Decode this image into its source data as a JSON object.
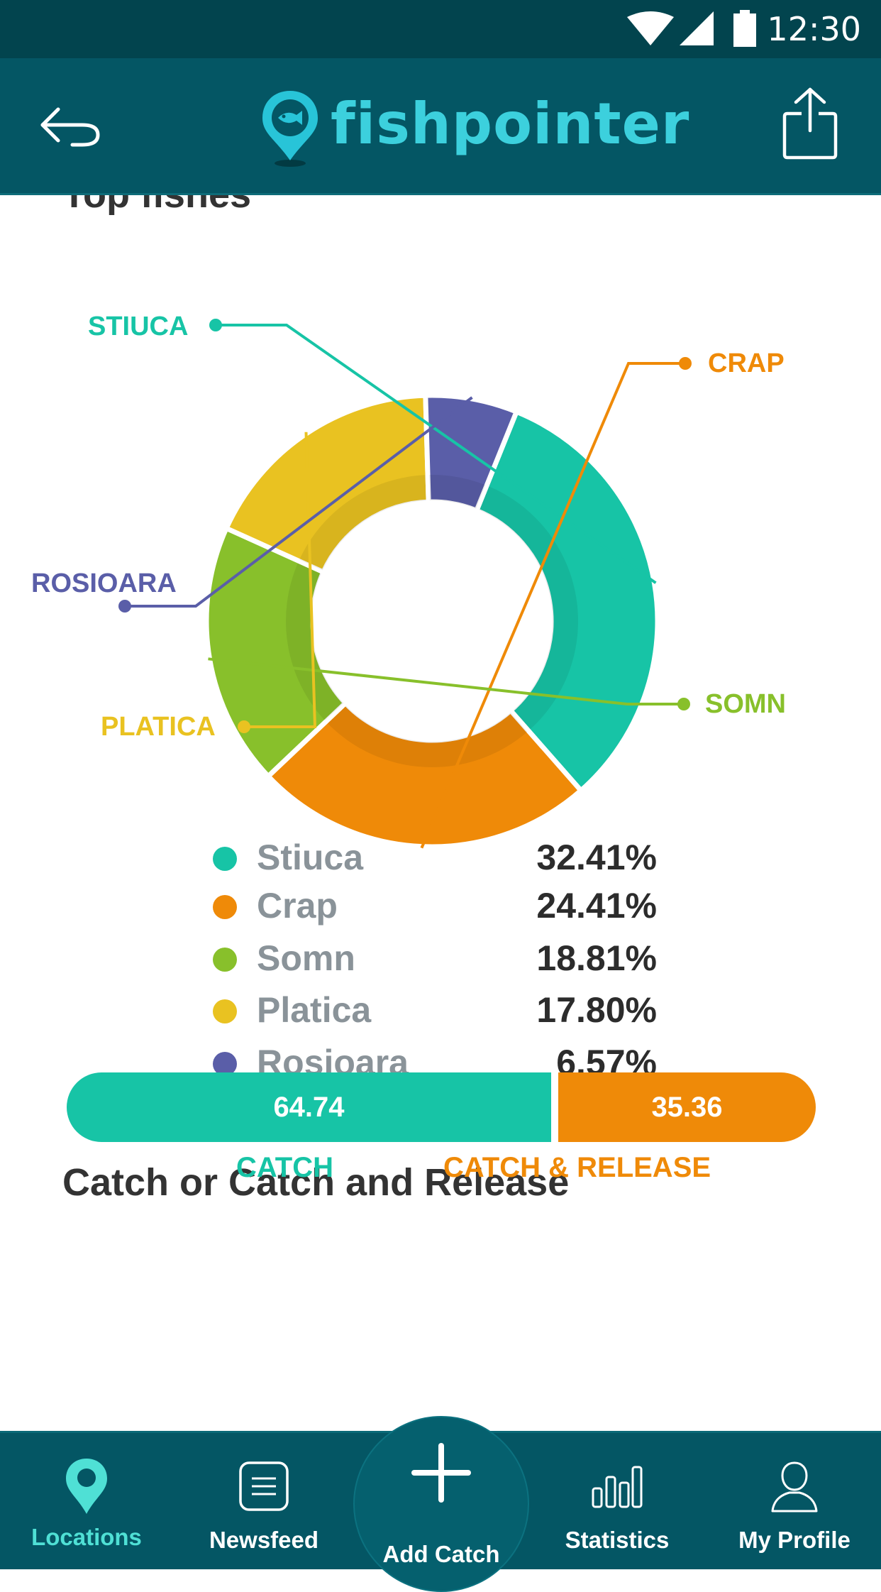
{
  "status_bar": {
    "time": "12:30"
  },
  "header": {
    "brand": "fishpointer"
  },
  "top_fishes": {
    "title": "Top fishes",
    "legend": [
      {
        "name": "Stiuca",
        "value": "32.41%",
        "color": "#17c4a6"
      },
      {
        "name": "Crap",
        "value": "24.41%",
        "color": "#ef8a08"
      },
      {
        "name": "Somn",
        "value": "18.81%",
        "color": "#88c02b"
      },
      {
        "name": "Platica",
        "value": "17.80%",
        "color": "#e9c221"
      },
      {
        "name": "Rosioara",
        "value": "6.57%",
        "color": "#5a5ea8"
      }
    ]
  },
  "chart_data": {
    "type": "pie",
    "title": "Top fishes",
    "categories": [
      "STIUCA",
      "CRAP",
      "SOMN",
      "PLATICA",
      "ROSIOARA"
    ],
    "values": [
      32.41,
      24.41,
      18.81,
      17.8,
      6.57
    ],
    "colors": [
      "#17c4a6",
      "#ef8a08",
      "#88c02b",
      "#e9c221",
      "#5a5ea8"
    ],
    "donut": true
  },
  "catch_release": {
    "title": "Catch or Catch and Release",
    "catch_value": "64.74",
    "release_value": "35.36",
    "catch_fraction": 64.74,
    "release_fraction": 35.36,
    "catch_label": "CATCH",
    "release_label": "CATCH & RELEASE",
    "catch_color": "#17c4a6",
    "release_color": "#ef8a08"
  },
  "nav": {
    "locations": "Locations",
    "newsfeed": "Newsfeed",
    "add_catch": "Add Catch",
    "statistics": "Statistics",
    "my_profile": "My Profile",
    "active_color": "#4fe0d5"
  }
}
